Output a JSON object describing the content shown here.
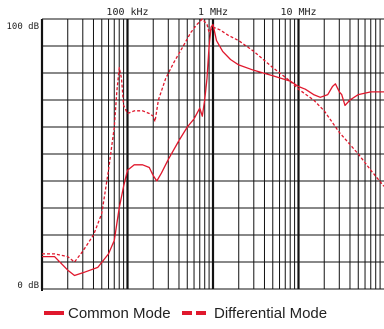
{
  "colors": {
    "accent": "#e0182d",
    "grid": "#111111",
    "text": "#222222"
  },
  "chart_data": {
    "type": "line",
    "x_scale": "log",
    "x_unit": "Hz",
    "xlim": [
      10000,
      100000000
    ],
    "ylim": [
      0,
      100
    ],
    "grid": true,
    "legend_position": "bottom",
    "x_tick_labels": [
      {
        "label": "100 kHz",
        "value": 100000
      },
      {
        "label": "1 MHz",
        "value": 1000000
      },
      {
        "label": "10 MHz",
        "value": 10000000
      }
    ],
    "y_tick_labels": [
      {
        "label": "100 dB",
        "value": 100
      },
      {
        "label": "0 dB",
        "value": 0
      }
    ],
    "series": [
      {
        "name": "Common Mode",
        "line_style": "solid",
        "points": [
          [
            10000,
            12
          ],
          [
            14000,
            12
          ],
          [
            20000,
            7
          ],
          [
            24000,
            5
          ],
          [
            30000,
            6
          ],
          [
            45000,
            8
          ],
          [
            60000,
            13
          ],
          [
            70000,
            18
          ],
          [
            80000,
            30
          ],
          [
            90000,
            38
          ],
          [
            100000,
            44
          ],
          [
            120000,
            46
          ],
          [
            150000,
            46
          ],
          [
            180000,
            45
          ],
          [
            200000,
            42
          ],
          [
            220000,
            40
          ],
          [
            250000,
            43
          ],
          [
            300000,
            48
          ],
          [
            400000,
            55
          ],
          [
            500000,
            60
          ],
          [
            600000,
            63
          ],
          [
            700000,
            67
          ],
          [
            750000,
            64
          ],
          [
            800000,
            70
          ],
          [
            850000,
            78
          ],
          [
            900000,
            90
          ],
          [
            950000,
            97
          ],
          [
            1000000,
            98
          ],
          [
            1100000,
            92
          ],
          [
            1300000,
            88
          ],
          [
            1600000,
            85
          ],
          [
            2000000,
            83
          ],
          [
            3000000,
            81
          ],
          [
            5000000,
            79
          ],
          [
            8000000,
            77
          ],
          [
            10000000,
            75
          ],
          [
            12000000,
            74
          ],
          [
            15000000,
            72
          ],
          [
            18000000,
            71
          ],
          [
            22000000,
            72
          ],
          [
            25000000,
            75
          ],
          [
            27000000,
            76
          ],
          [
            30000000,
            73
          ],
          [
            32000000,
            72
          ],
          [
            35000000,
            68
          ],
          [
            40000000,
            70
          ],
          [
            50000000,
            72
          ],
          [
            70000000,
            73
          ],
          [
            100000000,
            73
          ]
        ]
      },
      {
        "name": "Differential Mode",
        "line_style": "dashed",
        "points": [
          [
            10000,
            13
          ],
          [
            14000,
            13
          ],
          [
            20000,
            12
          ],
          [
            24000,
            10
          ],
          [
            30000,
            14
          ],
          [
            40000,
            20
          ],
          [
            50000,
            28
          ],
          [
            60000,
            44
          ],
          [
            70000,
            60
          ],
          [
            75000,
            73
          ],
          [
            80000,
            82
          ],
          [
            85000,
            78
          ],
          [
            90000,
            68
          ],
          [
            100000,
            65
          ],
          [
            120000,
            66
          ],
          [
            150000,
            66
          ],
          [
            180000,
            65
          ],
          [
            200000,
            64
          ],
          [
            210000,
            62
          ],
          [
            230000,
            70
          ],
          [
            280000,
            78
          ],
          [
            350000,
            84
          ],
          [
            450000,
            90
          ],
          [
            550000,
            95
          ],
          [
            650000,
            98
          ],
          [
            750000,
            100
          ],
          [
            850000,
            98
          ],
          [
            900000,
            95
          ],
          [
            1000000,
            97
          ],
          [
            1200000,
            96
          ],
          [
            1500000,
            94
          ],
          [
            2000000,
            92
          ],
          [
            3000000,
            88
          ],
          [
            5000000,
            82
          ],
          [
            8000000,
            77
          ],
          [
            10000000,
            74
          ],
          [
            15000000,
            70
          ],
          [
            20000000,
            66
          ],
          [
            30000000,
            58
          ],
          [
            50000000,
            50
          ],
          [
            70000000,
            44
          ],
          [
            100000000,
            38
          ]
        ]
      }
    ]
  }
}
